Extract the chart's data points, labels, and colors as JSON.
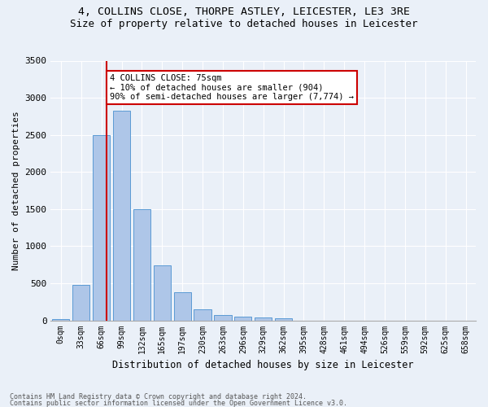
{
  "title1": "4, COLLINS CLOSE, THORPE ASTLEY, LEICESTER, LE3 3RE",
  "title2": "Size of property relative to detached houses in Leicester",
  "xlabel": "Distribution of detached houses by size in Leicester",
  "ylabel": "Number of detached properties",
  "categories": [
    "0sqm",
    "33sqm",
    "66sqm",
    "99sqm",
    "132sqm",
    "165sqm",
    "197sqm",
    "230sqm",
    "263sqm",
    "296sqm",
    "329sqm",
    "362sqm",
    "395sqm",
    "428sqm",
    "461sqm",
    "494sqm",
    "526sqm",
    "559sqm",
    "592sqm",
    "625sqm",
    "658sqm"
  ],
  "bar_heights": [
    20,
    480,
    2500,
    2820,
    1500,
    740,
    380,
    150,
    70,
    50,
    35,
    30,
    0,
    0,
    0,
    0,
    0,
    0,
    0,
    0,
    0
  ],
  "bar_color": "#aec6e8",
  "bar_edge_color": "#5b9bd5",
  "vline_color": "#cc0000",
  "annotation_title": "4 COLLINS CLOSE: 75sqm",
  "annotation_line1": "← 10% of detached houses are smaller (904)",
  "annotation_line2": "90% of semi-detached houses are larger (7,774) →",
  "annotation_box_color": "#ffffff",
  "annotation_box_edge": "#cc0000",
  "ylim": [
    0,
    3500
  ],
  "yticks": [
    0,
    500,
    1000,
    1500,
    2000,
    2500,
    3000,
    3500
  ],
  "footnote1": "Contains HM Land Registry data © Crown copyright and database right 2024.",
  "footnote2": "Contains public sector information licensed under the Open Government Licence v3.0.",
  "bg_color": "#eaf0f8",
  "plot_bg_color": "#eaf0f8",
  "grid_color": "#ffffff",
  "title1_fontsize": 9.5,
  "title2_fontsize": 9
}
